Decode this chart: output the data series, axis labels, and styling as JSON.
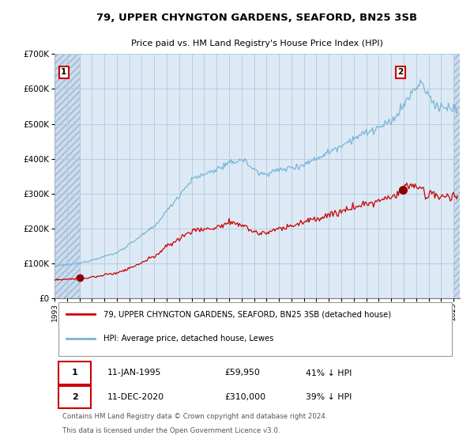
{
  "title": "79, UPPER CHYNGTON GARDENS, SEAFORD, BN25 3SB",
  "subtitle": "Price paid vs. HM Land Registry's House Price Index (HPI)",
  "legend_line1": "79, UPPER CHYNGTON GARDENS, SEAFORD, BN25 3SB (detached house)",
  "legend_line2": "HPI: Average price, detached house, Lewes",
  "sale1_date": "11-JAN-1995",
  "sale1_price": "£59,950",
  "sale1_note": "41% ↓ HPI",
  "sale2_date": "11-DEC-2020",
  "sale2_price": "£310,000",
  "sale2_note": "39% ↓ HPI",
  "footer1": "Contains HM Land Registry data © Crown copyright and database right 2024.",
  "footer2": "This data is licensed under the Open Government Licence v3.0.",
  "hpi_color": "#7ab4d8",
  "price_color": "#cc0000",
  "marker_color": "#8b0000",
  "bg_color": "#ddeaf5",
  "hatch_bg": "#ccdcee",
  "grid_color": "#b0c8de",
  "ylim": [
    0,
    700000
  ],
  "yticks": [
    0,
    100000,
    200000,
    300000,
    400000,
    500000,
    600000,
    700000
  ],
  "sale1_x": 1995.04,
  "sale1_y": 59950,
  "sale2_x": 2020.92,
  "sale2_y": 310000,
  "xmin": 1993.0,
  "xmax": 2025.5
}
